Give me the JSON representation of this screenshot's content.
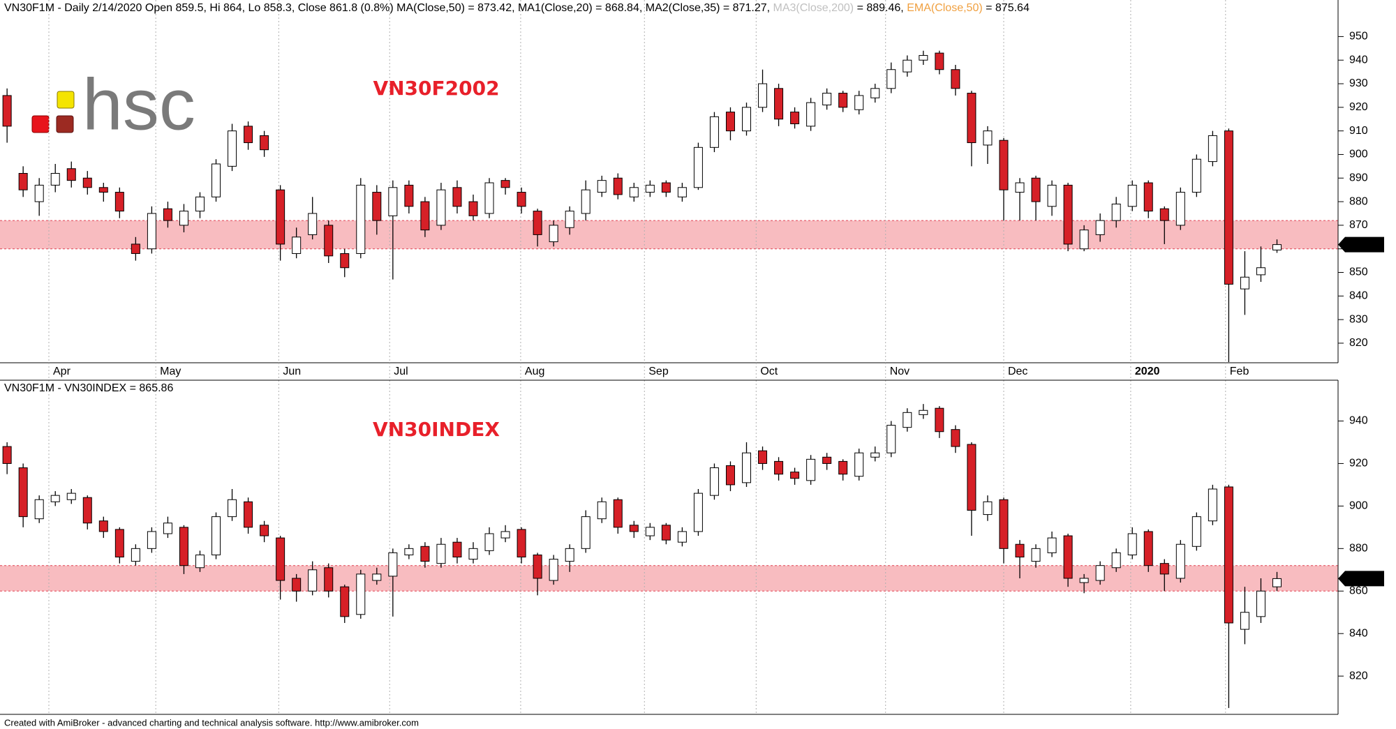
{
  "chart_data": [
    {
      "type": "candlestick",
      "header_segments": [
        {
          "text": "VN30F1M - Daily 2/14/2020 Open 859.5, Hi 864, Lo 858.3, Close 861.8 (0.8%) MA(Close,50) = 873.42, MA1(Close,20) = 868.84, MA2(Close,35) = 871.27, ",
          "color": "#000000"
        },
        {
          "text": "MA3(Close,200)",
          "color": "#c0c0c0"
        },
        {
          "text": " = 889.46, ",
          "color": "#000000"
        },
        {
          "text": "EMA(Close,50)",
          "color": "#f0a040"
        },
        {
          "text": " = 875.64",
          "color": "#000000"
        }
      ],
      "annotation": "VN30F2002",
      "annotation_color": "#e8202a",
      "watermark": "hsc",
      "categories": [
        null,
        null,
        null,
        null,
        null,
        null,
        null,
        null,
        null,
        null,
        null,
        null,
        null,
        null,
        null,
        null,
        null,
        null,
        null,
        null,
        null,
        null,
        null,
        null,
        null,
        null,
        null,
        null,
        null,
        null,
        null,
        null,
        null,
        null,
        null,
        null,
        null,
        null,
        null,
        null,
        null,
        null,
        null,
        null,
        null,
        null,
        null,
        null,
        null,
        null,
        null,
        null,
        null,
        null,
        null,
        null,
        null,
        null,
        null,
        null,
        null,
        null,
        null,
        null,
        null,
        null,
        null,
        null,
        null,
        null,
        null,
        null,
        null,
        null,
        null,
        null,
        null,
        null,
        null,
        null
      ],
      "open": [
        925,
        892,
        880,
        887,
        894,
        890,
        886,
        884,
        862,
        860,
        877,
        870,
        876,
        882,
        895,
        912,
        908,
        885,
        858,
        866,
        870,
        858,
        858,
        884,
        874,
        887,
        880,
        870,
        886,
        880,
        875,
        889,
        884,
        876,
        863,
        869,
        875,
        884,
        890,
        882,
        884,
        888,
        882,
        886,
        903,
        918,
        910,
        920,
        928,
        918,
        912,
        921,
        926,
        919,
        924,
        928,
        935,
        940,
        943,
        936,
        926,
        904,
        906,
        884,
        890,
        878,
        887,
        860,
        866,
        872,
        878,
        888,
        877,
        870,
        884,
        897,
        910,
        843,
        849,
        859.5
      ],
      "high": [
        928,
        895,
        890,
        896,
        897,
        893,
        888,
        886,
        865,
        878,
        880,
        879,
        884,
        898,
        913,
        914,
        910,
        887,
        869,
        882,
        872,
        860,
        890,
        887,
        889,
        889,
        882,
        888,
        889,
        883,
        890,
        890,
        886,
        877,
        872,
        878,
        889,
        891,
        892,
        888,
        889,
        889,
        888,
        905,
        918,
        920,
        922,
        936,
        930,
        920,
        924,
        928,
        927,
        927,
        930,
        939,
        942,
        944,
        944,
        938,
        927,
        912,
        907,
        890,
        891,
        889,
        888,
        870,
        875,
        882,
        889,
        889,
        878,
        886,
        900,
        910,
        911,
        859,
        861,
        864
      ],
      "low": [
        905,
        882,
        874,
        884,
        886,
        883,
        880,
        873,
        855,
        858,
        869,
        867,
        873,
        880,
        893,
        902,
        899,
        855,
        856,
        864,
        854,
        848,
        856,
        866,
        847,
        875,
        865,
        868,
        875,
        872,
        873,
        883,
        875,
        861,
        861,
        866,
        872,
        882,
        881,
        880,
        882,
        882,
        880,
        885,
        901,
        906,
        908,
        918,
        912,
        911,
        910,
        919,
        918,
        917,
        922,
        926,
        933,
        938,
        934,
        925,
        895,
        896,
        872,
        872,
        872,
        874,
        859,
        859,
        863,
        869,
        876,
        873,
        862,
        868,
        882,
        895,
        812,
        832,
        846,
        858.3
      ],
      "close": [
        912,
        885,
        887,
        892,
        889,
        886,
        884,
        876,
        858,
        875,
        872,
        876,
        882,
        896,
        910,
        905,
        902,
        862,
        865,
        875,
        857,
        852,
        887,
        872,
        886,
        878,
        868,
        885,
        878,
        874,
        888,
        886,
        878,
        866,
        870,
        876,
        885,
        889,
        883,
        886,
        887,
        884,
        886,
        903,
        916,
        910,
        920,
        930,
        915,
        913,
        922,
        926,
        920,
        925,
        928,
        936,
        940,
        942,
        936,
        928,
        905,
        910,
        885,
        888,
        880,
        887,
        862,
        868,
        872,
        879,
        887,
        876,
        872,
        884,
        898,
        908,
        845,
        848,
        852,
        861.8
      ],
      "up_color": "#ffffff",
      "down_color": "#d62027",
      "band": {
        "from": 860,
        "to": 872,
        "color": "#f8bcc0"
      },
      "ylim": [
        811.7,
        965.5
      ],
      "yticks": [
        820,
        830,
        840,
        850,
        860,
        870,
        880,
        890,
        900,
        910,
        920,
        930,
        940,
        950
      ],
      "xlim": [
        -0.44,
        82.8
      ],
      "xticks": [
        {
          "value": 2.6,
          "label": "Apr"
        },
        {
          "value": 9.25,
          "label": "May"
        },
        {
          "value": 16.9,
          "label": "Jun"
        },
        {
          "value": 23.8,
          "label": "Jul"
        },
        {
          "value": 31.95,
          "label": "Aug"
        },
        {
          "value": 39.65,
          "label": "Sep"
        },
        {
          "value": 46.6,
          "label": "Oct"
        },
        {
          "value": 54.65,
          "label": "Nov"
        },
        {
          "value": 62.0,
          "label": "Dec"
        },
        {
          "value": 69.9,
          "label": "2020",
          "bold": true
        },
        {
          "value": 75.8,
          "label": "Feb"
        }
      ],
      "grid": "vertical"
    },
    {
      "type": "candlestick",
      "header_segments": [
        {
          "text": "VN30F1M - VN30INDEX = 865.86",
          "color": "#000000"
        }
      ],
      "annotation": "VN30INDEX",
      "annotation_color": "#e8202a",
      "categories": [
        null,
        null,
        null,
        null,
        null,
        null,
        null,
        null,
        null,
        null,
        null,
        null,
        null,
        null,
        null,
        null,
        null,
        null,
        null,
        null,
        null,
        null,
        null,
        null,
        null,
        null,
        null,
        null,
        null,
        null,
        null,
        null,
        null,
        null,
        null,
        null,
        null,
        null,
        null,
        null,
        null,
        null,
        null,
        null,
        null,
        null,
        null,
        null,
        null,
        null,
        null,
        null,
        null,
        null,
        null,
        null,
        null,
        null,
        null,
        null,
        null,
        null,
        null,
        null,
        null,
        null,
        null,
        null,
        null,
        null,
        null,
        null,
        null,
        null,
        null,
        null,
        null,
        null,
        null,
        null
      ],
      "open": [
        928,
        918,
        894,
        902,
        903,
        904,
        893,
        889,
        874,
        880,
        887,
        890,
        871,
        877,
        895,
        902,
        891,
        885,
        866,
        860,
        871,
        862,
        849,
        865,
        867,
        877,
        881,
        873,
        883,
        875,
        879,
        885,
        889,
        877,
        865,
        874,
        880,
        894,
        903,
        891,
        886,
        891,
        883,
        888,
        905,
        919,
        911,
        926,
        921,
        916,
        912,
        923,
        921,
        914,
        923,
        925,
        937,
        943,
        946,
        936,
        929,
        896,
        903,
        882,
        874,
        878,
        886,
        864,
        865,
        871,
        877,
        888,
        873,
        866,
        881,
        893,
        909,
        842,
        848,
        862
      ],
      "high": [
        930,
        920,
        905,
        907,
        908,
        905,
        895,
        890,
        882,
        890,
        895,
        891,
        879,
        897,
        908,
        904,
        893,
        886,
        868,
        874,
        873,
        863,
        870,
        871,
        880,
        882,
        883,
        885,
        885,
        883,
        890,
        891,
        890,
        878,
        877,
        882,
        898,
        904,
        904,
        893,
        892,
        892,
        890,
        908,
        920,
        921,
        930,
        928,
        923,
        918,
        924,
        925,
        922,
        927,
        928,
        940,
        946,
        948,
        947,
        938,
        930,
        905,
        904,
        884,
        882,
        888,
        887,
        868,
        874,
        880,
        890,
        889,
        875,
        884,
        897,
        910,
        910,
        862,
        866,
        869
      ],
      "low": [
        915,
        890,
        892,
        900,
        901,
        889,
        885,
        873,
        872,
        878,
        885,
        868,
        869,
        875,
        893,
        887,
        883,
        856,
        855,
        858,
        857,
        845,
        847,
        863,
        848,
        875,
        871,
        871,
        873,
        873,
        877,
        883,
        873,
        858,
        863,
        869,
        878,
        892,
        887,
        885,
        884,
        882,
        881,
        886,
        903,
        907,
        909,
        917,
        912,
        910,
        910,
        917,
        912,
        912,
        921,
        923,
        935,
        941,
        932,
        925,
        886,
        893,
        873,
        866,
        871,
        876,
        862,
        859,
        863,
        869,
        875,
        869,
        860,
        864,
        879,
        891,
        805,
        835,
        845,
        860
      ],
      "close": [
        920,
        895,
        903,
        905,
        906,
        892,
        888,
        876,
        880,
        888,
        892,
        872,
        877,
        895,
        903,
        890,
        886,
        865,
        860,
        870,
        860,
        848,
        868,
        868,
        878,
        880,
        874,
        882,
        876,
        880,
        887,
        888,
        876,
        866,
        875,
        880,
        895,
        902,
        890,
        888,
        890,
        884,
        888,
        906,
        918,
        910,
        925,
        920,
        915,
        913,
        922,
        920,
        915,
        925,
        925,
        938,
        944,
        945,
        935,
        928,
        898,
        902,
        880,
        876,
        880,
        885,
        866,
        866,
        872,
        878,
        887,
        872,
        868,
        882,
        895,
        908,
        845,
        850,
        860,
        865.86
      ],
      "up_color": "#ffffff",
      "down_color": "#d62027",
      "band": {
        "from": 860,
        "to": 872,
        "color": "#f8bcc0"
      },
      "ylim": [
        802,
        959.2
      ],
      "yticks": [
        820,
        840,
        860,
        880,
        900,
        920,
        940
      ],
      "xlim": [
        -0.44,
        82.8
      ],
      "grid": "vertical"
    }
  ],
  "footer": "Created with AmiBroker - advanced charting and technical analysis software. http://www.amibroker.com"
}
